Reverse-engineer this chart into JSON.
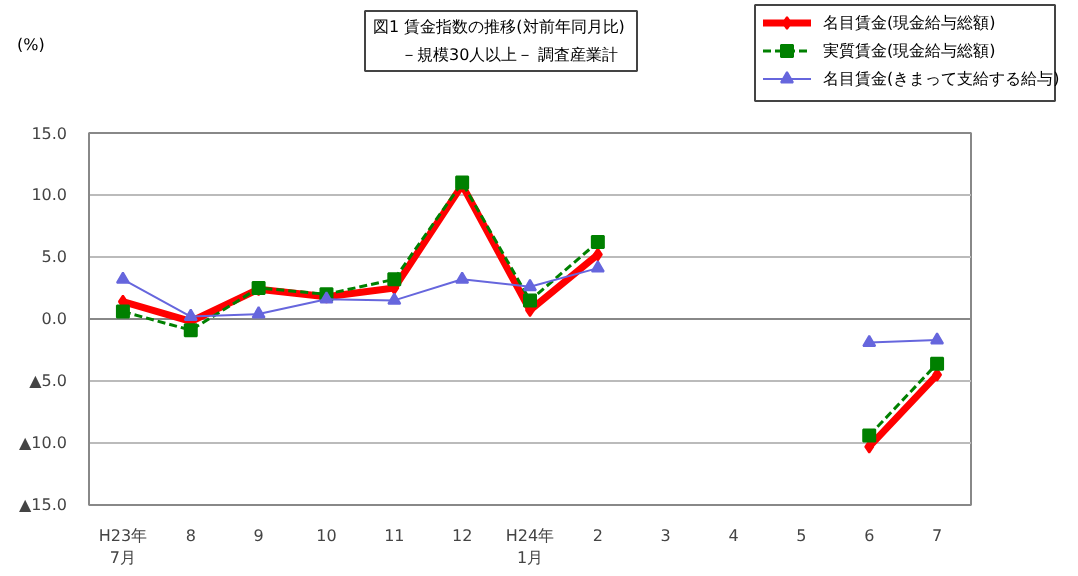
{
  "chart_data": {
    "type": "line",
    "title": "図1  賃金指数の推移(対前年同月比)",
    "subtitle": "－規模30人以上－  調査産業計",
    "ylabel": "(%)",
    "categories": [
      "H23年\n7月",
      "8",
      "9",
      "10",
      "11",
      "12",
      "H24年\n1月",
      "2",
      "3",
      "4",
      "5",
      "6",
      "7"
    ],
    "ylim": [
      -15,
      15
    ],
    "yticks": [
      {
        "value": 15,
        "label": "15.0"
      },
      {
        "value": 10,
        "label": "10.0"
      },
      {
        "value": 5,
        "label": "5.0"
      },
      {
        "value": 0,
        "label": "0.0"
      },
      {
        "value": -5,
        "label": "▲5.0"
      },
      {
        "value": -10,
        "label": "▲10.0"
      },
      {
        "value": -15,
        "label": "▲15.0"
      }
    ],
    "grid": "y",
    "legend": "top right",
    "series": [
      {
        "name": "名目賃金(現金給与総額)",
        "color": "#ff0000",
        "marker": "diamond",
        "line_style": "solid",
        "values": [
          1.4,
          -0.2,
          2.4,
          1.8,
          2.5,
          10.8,
          0.7,
          5.2,
          null,
          null,
          null,
          -10.3,
          -4.5
        ]
      },
      {
        "name": "実質賃金(現金給与総額)",
        "color": "#008000",
        "marker": "square",
        "line_style": "dashed",
        "values": [
          0.6,
          -0.9,
          2.5,
          2.0,
          3.2,
          11.0,
          1.5,
          6.2,
          null,
          null,
          null,
          -9.4,
          -3.6
        ]
      },
      {
        "name": "名目賃金(きまって支給する給与)",
        "color": "#6666dd",
        "marker": "triangle",
        "line_style": "solid",
        "values": [
          3.2,
          0.2,
          0.4,
          1.6,
          1.5,
          3.2,
          2.6,
          4.1,
          null,
          null,
          null,
          -1.9,
          -1.7
        ]
      }
    ]
  }
}
